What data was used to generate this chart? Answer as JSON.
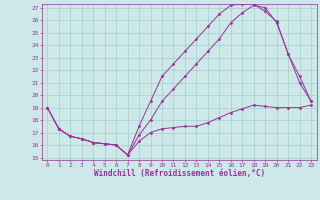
{
  "xlabel": "Windchill (Refroidissement éolien,°C)",
  "bg_color": "#cce8e8",
  "line_color": "#993399",
  "grid_color": "#aacccc",
  "line1_x": [
    0,
    1,
    2,
    3,
    4,
    5,
    6,
    7,
    8,
    9,
    10,
    11,
    12,
    13,
    14,
    15,
    16,
    17,
    18,
    19,
    20,
    21,
    22,
    23
  ],
  "line1_y": [
    19,
    17.3,
    16.7,
    16.5,
    16.2,
    16.1,
    16.0,
    15.2,
    16.3,
    17.0,
    17.3,
    17.4,
    17.5,
    17.5,
    17.8,
    18.2,
    18.6,
    18.9,
    19.2,
    19.1,
    19.0,
    19.0,
    19.0,
    19.2
  ],
  "line2_x": [
    0,
    1,
    2,
    3,
    4,
    5,
    6,
    7,
    8,
    9,
    10,
    11,
    12,
    13,
    14,
    15,
    16,
    17,
    18,
    19,
    20,
    21,
    22,
    23
  ],
  "line2_y": [
    19,
    17.3,
    16.7,
    16.5,
    16.2,
    16.1,
    16.0,
    15.2,
    17.5,
    19.5,
    21.5,
    22.5,
    23.5,
    24.5,
    25.5,
    26.5,
    27.2,
    27.3,
    27.3,
    26.7,
    25.9,
    23.3,
    21.0,
    19.5
  ],
  "line3_x": [
    0,
    1,
    2,
    3,
    4,
    5,
    6,
    7,
    8,
    9,
    10,
    11,
    12,
    13,
    14,
    15,
    16,
    17,
    18,
    19,
    20,
    21,
    22,
    23
  ],
  "line3_y": [
    19,
    17.3,
    16.7,
    16.5,
    16.2,
    16.1,
    16.0,
    15.2,
    16.8,
    18.0,
    19.5,
    20.5,
    21.5,
    22.5,
    23.5,
    24.5,
    25.8,
    26.6,
    27.2,
    27.0,
    25.8,
    23.3,
    21.5,
    19.5
  ],
  "ylim": [
    15,
    27
  ],
  "xlim": [
    0,
    23
  ],
  "yticks": [
    15,
    16,
    17,
    18,
    19,
    20,
    21,
    22,
    23,
    24,
    25,
    26,
    27
  ],
  "xticks": [
    0,
    1,
    2,
    3,
    4,
    5,
    6,
    7,
    8,
    9,
    10,
    11,
    12,
    13,
    14,
    15,
    16,
    17,
    18,
    19,
    20,
    21,
    22,
    23
  ],
  "marker": "D",
  "markersize": 1.5,
  "linewidth": 0.7,
  "tick_fontsize": 4.5,
  "label_fontsize": 5.5
}
